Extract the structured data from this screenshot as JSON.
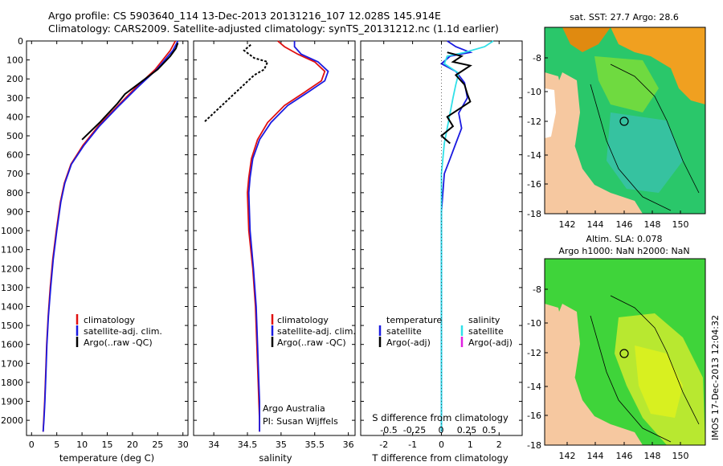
{
  "header": {
    "line1": "Argo profile: CS 5903640_114 13-Dec-2013 20131216_107 12.028S 145.914E",
    "line2": "Climatology: CARS2009. Satellite-adjusted climatology: synTS_20131212.nc (1.1d earlier)"
  },
  "colors": {
    "climatology": "#e01010",
    "satellite": "#1a1ae0",
    "argo": "#000000",
    "sal_satellite": "#30e0e8",
    "sal_argo": "#e020e0",
    "land": "#f6c8a0",
    "deep_green": "#2ac76a",
    "bright_green": "#3fd43a"
  },
  "chart_data": [
    {
      "type": "line",
      "id": "temperature",
      "xlabel": "temperature (deg C)",
      "xlim": [
        -1,
        31
      ],
      "xticks": [
        0,
        5,
        10,
        15,
        20,
        25,
        30
      ],
      "ylim": [
        0,
        2080
      ],
      "yticks": [
        0,
        100,
        200,
        300,
        400,
        500,
        600,
        700,
        800,
        900,
        1000,
        1100,
        1200,
        1300,
        1400,
        1500,
        1600,
        1700,
        1800,
        1900,
        2000
      ],
      "series": [
        {
          "name": "climatology",
          "color_key": "climatology",
          "x": [
            28.5,
            27.5,
            24.5,
            20.5,
            16.8,
            13.2,
            10.2,
            7.8,
            6.5,
            5.7,
            4.9,
            4.2,
            3.7,
            3.3,
            3.0,
            2.8,
            2.6,
            2.4,
            2.3
          ],
          "y": [
            0,
            50,
            150,
            250,
            350,
            450,
            550,
            650,
            750,
            850,
            1000,
            1150,
            1300,
            1450,
            1600,
            1750,
            1900,
            2000,
            2060
          ]
        },
        {
          "name": "satellite-adj. clim.",
          "color_key": "satellite",
          "x": [
            29.0,
            28.0,
            24.8,
            20.8,
            17.0,
            13.4,
            10.4,
            7.9,
            6.6,
            5.8,
            5.0,
            4.3,
            3.8,
            3.35,
            3.05,
            2.85,
            2.65,
            2.45,
            2.3
          ],
          "y": [
            0,
            50,
            150,
            250,
            350,
            450,
            550,
            650,
            750,
            850,
            1000,
            1150,
            1300,
            1450,
            1600,
            1750,
            1900,
            2000,
            2060
          ]
        },
        {
          "name": "Argo(..raw -QC)",
          "color_key": "argo",
          "x": [
            29.0,
            28.6,
            27.5,
            25.0,
            21.0,
            18.5,
            17.0,
            13.5,
            10.0
          ],
          "y": [
            10,
            40,
            80,
            150,
            230,
            280,
            330,
            430,
            520
          ]
        }
      ],
      "legend": [
        "climatology",
        "satellite-adj. clim.",
        "Argo(..raw -QC)"
      ]
    },
    {
      "type": "line",
      "id": "salinity",
      "xlabel": "salinity",
      "xlim": [
        33.7,
        36.1
      ],
      "xticks": [
        34,
        34.5,
        35,
        35.5,
        36
      ],
      "ylim": [
        0,
        2080
      ],
      "series": [
        {
          "name": "climatology",
          "color_key": "climatology",
          "x": [
            34.95,
            35.05,
            35.25,
            35.5,
            35.65,
            35.6,
            35.35,
            35.05,
            34.8,
            34.65,
            34.56,
            34.52,
            34.5,
            34.52,
            34.58,
            34.62,
            34.64,
            34.66,
            34.67,
            34.68,
            34.68
          ],
          "y": [
            0,
            30,
            70,
            110,
            160,
            210,
            270,
            340,
            430,
            520,
            620,
            720,
            800,
            1000,
            1200,
            1400,
            1600,
            1800,
            1900,
            2000,
            2060
          ]
        },
        {
          "name": "satellite-adj. clim.",
          "color_key": "satellite",
          "x": [
            35.2,
            35.2,
            35.3,
            35.55,
            35.7,
            35.65,
            35.4,
            35.1,
            34.85,
            34.68,
            34.58,
            34.54,
            34.52,
            34.54,
            34.59,
            34.63,
            34.65,
            34.67,
            34.68,
            34.68,
            34.68
          ],
          "y": [
            0,
            30,
            70,
            110,
            160,
            210,
            270,
            340,
            430,
            520,
            620,
            720,
            800,
            1000,
            1200,
            1400,
            1600,
            1800,
            1900,
            2000,
            2060
          ]
        },
        {
          "name": "Argo(..raw -QC)",
          "color_key": "argo",
          "x": [
            34.55,
            34.45,
            34.6,
            34.8,
            34.75,
            34.6,
            34.45,
            34.3,
            34.15,
            34.0,
            33.85
          ],
          "y": [
            20,
            50,
            90,
            110,
            150,
            180,
            230,
            280,
            330,
            380,
            430
          ]
        }
      ],
      "legend": [
        "climatology",
        "satellite-adj. clim.",
        "Argo(..raw -QC)"
      ],
      "annotations": [
        "Argo Australia",
        "PI: Susan Wijffels"
      ]
    },
    {
      "type": "line",
      "id": "difference",
      "xlabel": "T difference from climatology",
      "xlabel_top": "S difference from climatology",
      "xlim": [
        -2.8,
        2.8
      ],
      "xticks": [
        -2,
        -1,
        0,
        1,
        2
      ],
      "top_ticks": [
        "-0.5",
        "-0.25",
        "0",
        "0.25",
        "0.5"
      ],
      "ylim": [
        0,
        2080
      ],
      "series": [
        {
          "name": "temperature satellite",
          "color_key": "satellite",
          "x": [
            0.2,
            0.5,
            1.0,
            0.3,
            0.0,
            0.5,
            0.8,
            0.9,
            0.6,
            0.7,
            0.5,
            0.3,
            0.1,
            0.0,
            0.0,
            0.0
          ],
          "y": [
            0,
            30,
            60,
            80,
            120,
            160,
            220,
            300,
            380,
            460,
            540,
            620,
            700,
            900,
            1400,
            2060
          ]
        },
        {
          "name": "salinity satellite",
          "color_key": "sal_satellite",
          "x": [
            1.8,
            1.5,
            0.8,
            0.2,
            0.1,
            0.6,
            0.5,
            0.4,
            0.3,
            0.2,
            0.1,
            0.05,
            0.0,
            0.0,
            0.0
          ],
          "y": [
            0,
            30,
            60,
            80,
            120,
            170,
            230,
            300,
            380,
            460,
            540,
            620,
            700,
            1400,
            2060
          ]
        },
        {
          "name": "temperature Argo(-adj)",
          "color_key": "argo",
          "x": [
            0.2,
            0.7,
            0.4,
            1.0,
            0.5,
            0.8,
            0.9,
            1.0,
            0.2,
            0.4,
            0.0,
            0.3
          ],
          "y": [
            60,
            80,
            110,
            130,
            180,
            230,
            280,
            320,
            400,
            450,
            500,
            540
          ]
        }
      ],
      "legend_headers": [
        "temperature",
        "salinity"
      ],
      "legend": [
        "satellite",
        "Argo(-adj)",
        "satellite",
        "Argo(-adj)"
      ]
    }
  ],
  "maps": {
    "sst": {
      "title": "sat. SST: 27.7 Argo: 28.6",
      "xticks": [
        "142",
        "144",
        "146",
        "148",
        "150"
      ],
      "yticks": [
        "-8",
        "-10",
        "-12",
        "-14",
        "-16",
        "-18"
      ]
    },
    "sla": {
      "title_line1": "Altim. SLA: 0.078",
      "title_line2": "Argo h1000: NaN h2000: NaN",
      "xticks": [
        "142",
        "144",
        "146",
        "148",
        "150"
      ],
      "yticks": [
        "-8",
        "-10",
        "-12",
        "-14",
        "-16",
        "-18"
      ]
    }
  },
  "footer": {
    "imos_stamp": "IMOS 17-Dec-2013 12:04:32"
  }
}
